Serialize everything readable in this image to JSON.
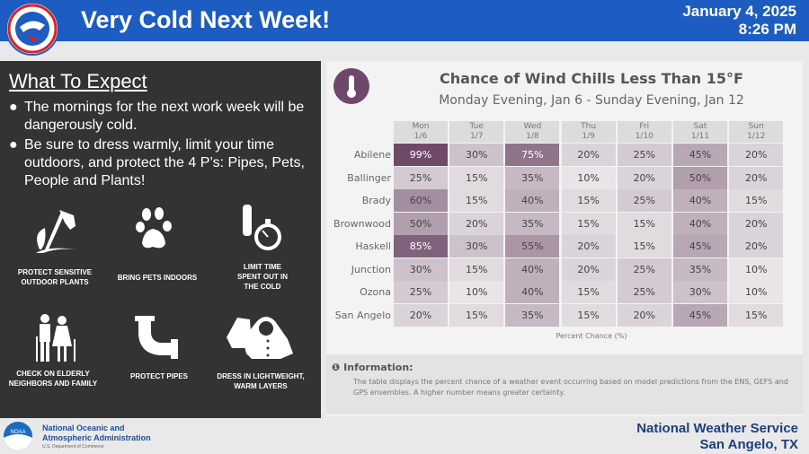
{
  "header": {
    "title": "Very Cold Next Week!",
    "date": "January 4, 2025",
    "time": "8:26 PM",
    "logo_text": "NATIONAL WEATHER SERVICE"
  },
  "left": {
    "heading": "What To Expect",
    "bullets": [
      "The mornings for the next work week will be dangerously cold.",
      "Be sure to dress warmly, limit your time outdoors, and protect the 4 P’s: Pipes, Pets, People and Plants!"
    ],
    "bullet_symbol": "●",
    "tips": [
      {
        "icon": "wilted-plant-icon",
        "label": "PROTECT SENSITIVE OUTDOOR PLANTS"
      },
      {
        "icon": "paw-icon",
        "label": "BRING PETS INDOORS"
      },
      {
        "icon": "thermometer-stopwatch-icon",
        "label": "LIMIT TIME SPENT OUT IN THE COLD"
      },
      {
        "icon": "elderly-couple-icon",
        "label": "CHECK ON ELDERLY NEIGHBORS AND FAMILY"
      },
      {
        "icon": "pipe-icon",
        "label": "PROTECT PIPES"
      },
      {
        "icon": "jacket-icon",
        "label": "DRESS IN LIGHTWEIGHT, WARM LAYERS"
      }
    ]
  },
  "chart_data": {
    "type": "heatmap",
    "title": "Chance of Wind Chills Less Than 15°F",
    "subtitle": "Monday Evening, Jan 6 - Sunday Evening, Jan 12",
    "xlabel": "Percent Chance (%)",
    "columns": [
      {
        "day": "Mon",
        "date": "1/6"
      },
      {
        "day": "Tue",
        "date": "1/7"
      },
      {
        "day": "Wed",
        "date": "1/8"
      },
      {
        "day": "Thu",
        "date": "1/9"
      },
      {
        "day": "Fri",
        "date": "1/10"
      },
      {
        "day": "Sat",
        "date": "1/11"
      },
      {
        "day": "Sun",
        "date": "1/12"
      }
    ],
    "rows": [
      "Abilene",
      "Ballinger",
      "Brady",
      "Brownwood",
      "Haskell",
      "Junction",
      "Ozona",
      "San Angelo"
    ],
    "values": [
      [
        99,
        30,
        75,
        20,
        25,
        45,
        20
      ],
      [
        25,
        15,
        35,
        10,
        20,
        50,
        20
      ],
      [
        60,
        15,
        40,
        15,
        25,
        40,
        15
      ],
      [
        50,
        20,
        35,
        15,
        15,
        40,
        20
      ],
      [
        85,
        30,
        55,
        20,
        15,
        45,
        20
      ],
      [
        30,
        15,
        40,
        20,
        25,
        35,
        10
      ],
      [
        25,
        10,
        40,
        15,
        25,
        30,
        10
      ],
      [
        20,
        15,
        35,
        15,
        20,
        45,
        15
      ]
    ],
    "unit": "%",
    "color_low": "#e8e4e7",
    "color_high": "#6e4a68"
  },
  "info": {
    "heading": "Information:",
    "text": "The table displays the percent chance of a weather event occurring based on model predictions from the ENS, GEFS and GPS ensembles. A higher number means greater certainty."
  },
  "footer": {
    "noaa_line1": "National Oceanic and",
    "noaa_line2": "Atmospheric Administration",
    "noaa_dept": "U.S. Department of Commerce",
    "noaa_logo_text": "NOAA",
    "nws_line1": "National Weather Service",
    "nws_line2": "San Angelo, TX"
  },
  "colors": {
    "header_blue": "#1d5cc0",
    "panel_dark": "#333333"
  }
}
